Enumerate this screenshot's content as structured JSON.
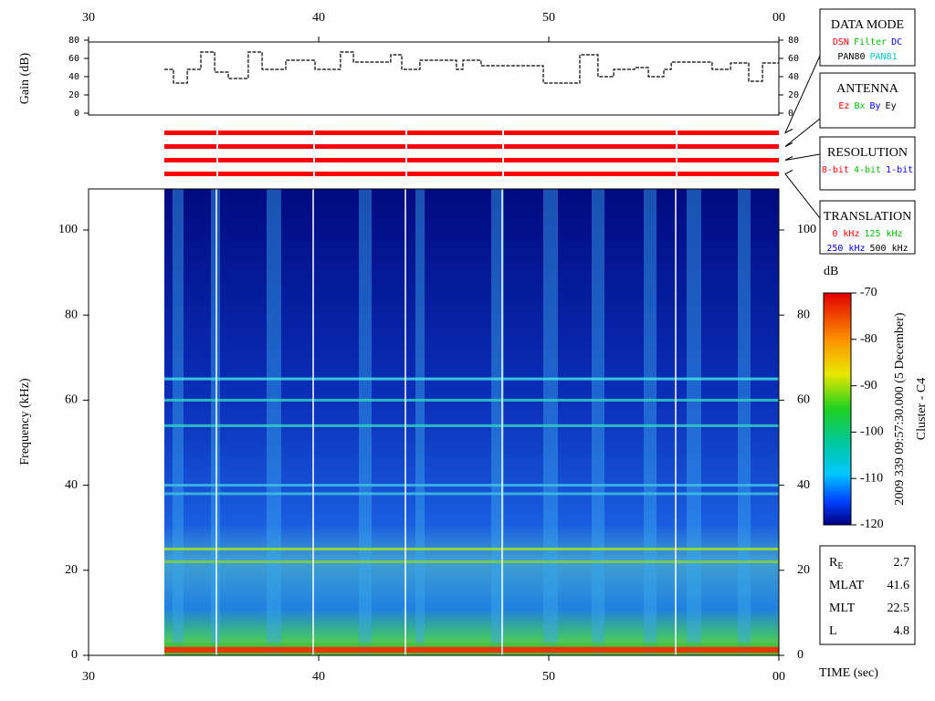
{
  "chart_data": [
    {
      "type": "line",
      "ylabel": "Gain (dB)",
      "color": "#000000",
      "xlim": [
        30,
        60
      ],
      "xticks": [
        30,
        40,
        50,
        {
          "value": 60,
          "label": "00"
        }
      ],
      "ylim": [
        0,
        80
      ],
      "yticks": [
        0,
        20,
        40,
        60,
        80
      ],
      "x": [
        33.29,
        33.69,
        34.29,
        34.88,
        35.48,
        36.07,
        36.94,
        37.54,
        38.33,
        38.57,
        39.25,
        39.84,
        40.95,
        41.51,
        42.82,
        43.13,
        43.61,
        44.4,
        45.2,
        45.99,
        46.27,
        47.06,
        49.17,
        49.76,
        50.36,
        51.35,
        52.14,
        52.82,
        53.73,
        54.33,
        55.0,
        55.32,
        56.31,
        57.1,
        57.9,
        58.69,
        59.29,
        60.0
      ],
      "values": [
        48,
        33,
        48,
        67,
        45,
        38,
        67,
        48,
        48,
        58,
        58,
        48,
        67,
        56,
        56,
        64,
        48,
        58,
        58,
        48,
        58,
        52,
        52,
        33,
        33,
        64,
        40,
        48,
        50,
        40,
        48,
        56,
        56,
        48,
        55,
        35,
        55,
        55
      ]
    },
    {
      "type": "spectrogram",
      "ylabel": "Frequency (kHz)",
      "xlabel": "TIME (sec)",
      "xlim": [
        30,
        60
      ],
      "xticks": [
        30,
        40,
        50,
        {
          "value": 60,
          "label": "00"
        }
      ],
      "ylim": [
        0,
        110
      ],
      "yticks": [
        0,
        20,
        40,
        60,
        80,
        100
      ],
      "colorbar": {
        "label": "dB",
        "lim": [
          -120,
          -70
        ],
        "ticks": [
          -70,
          -80,
          -90,
          -100,
          -110,
          -120
        ]
      },
      "annotations": [
        "2009 339 09:57:30.000 (5 December)",
        "Cluster - C4"
      ]
    }
  ],
  "side_panels": [
    {
      "title": "DATA MODE",
      "rows": [
        [
          {
            "text": "DSN",
            "color": "#ff0000"
          },
          {
            "text": "Filter",
            "color": "#00c000"
          },
          {
            "text": "DC",
            "color": "#0000ff"
          }
        ],
        [
          {
            "text": "PAN80",
            "color": "#000000"
          },
          {
            "text": "PAN81",
            "color": "#00c8c8"
          }
        ]
      ]
    },
    {
      "title": "ANTENNA",
      "rows": [
        [
          {
            "text": "Ez",
            "color": "#ff0000"
          },
          {
            "text": "Bx",
            "color": "#00c000"
          },
          {
            "text": "By",
            "color": "#0000ff"
          },
          {
            "text": "Ey",
            "color": "#000000"
          }
        ]
      ]
    },
    {
      "title": "RESOLUTION",
      "rows": [
        [
          {
            "text": "8-bit",
            "color": "#ff0000"
          },
          {
            "text": "4-bit",
            "color": "#00c000"
          },
          {
            "text": "1-bit",
            "color": "#0000ff"
          }
        ]
      ]
    },
    {
      "title": "TRANSLATION",
      "rows": [
        [
          {
            "text": "0 kHz",
            "color": "#ff0000"
          },
          {
            "text": "125 kHz",
            "color": "#00c000"
          }
        ],
        [
          {
            "text": "250 kHz",
            "color": "#0000ff"
          },
          {
            "text": "500 kHz",
            "color": "#000000"
          }
        ]
      ]
    }
  ],
  "info": [
    {
      "label": "R",
      "subscript": "E",
      "value": 2.7
    },
    {
      "label": "MLAT",
      "value": 41.6
    },
    {
      "label": "MLT",
      "value": 22.5
    },
    {
      "label": "L",
      "value": 4.8
    }
  ]
}
